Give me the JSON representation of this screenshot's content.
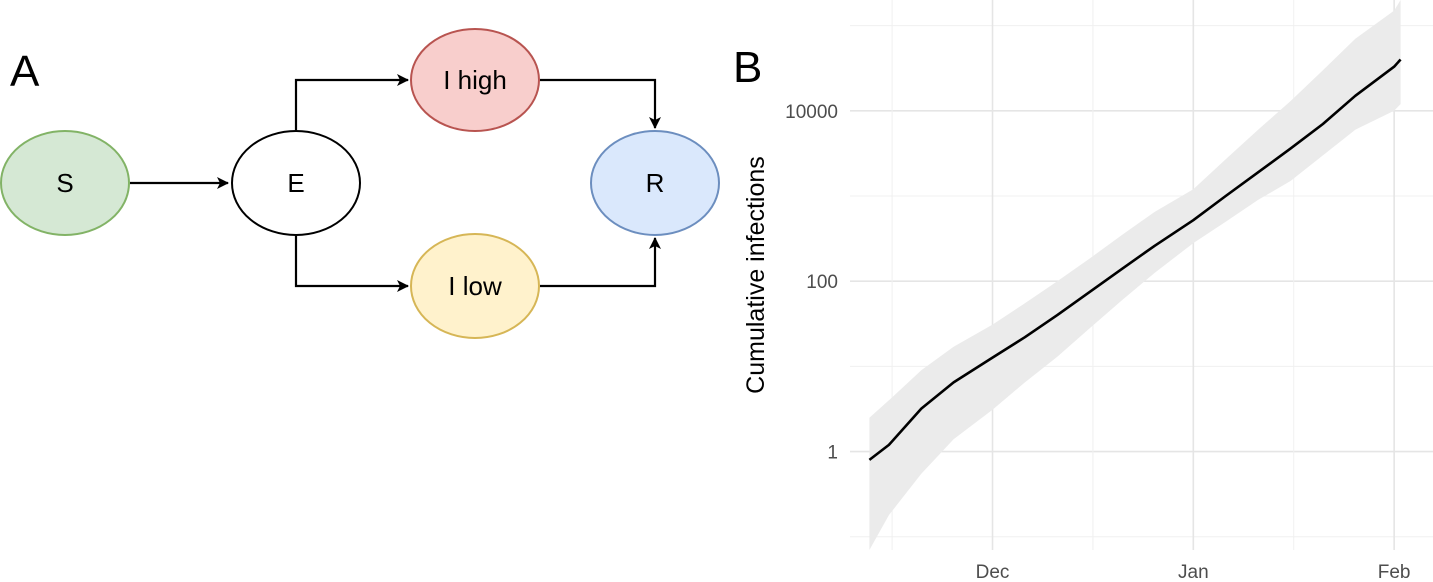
{
  "panels": {
    "a": {
      "letter": "A"
    },
    "b": {
      "letter": "B"
    }
  },
  "diagram": {
    "nodes": {
      "s": {
        "label": "S",
        "fill": "#d5e8d4",
        "stroke": "#82b366"
      },
      "e": {
        "label": "E",
        "fill": "#ffffff",
        "stroke": "#000000"
      },
      "ihigh": {
        "label": "I high",
        "fill": "#f8cecc",
        "stroke": "#b85450"
      },
      "ilow": {
        "label": "I low",
        "fill": "#fff2cc",
        "stroke": "#d6b656"
      },
      "r": {
        "label": "R",
        "fill": "#dae8fc",
        "stroke": "#6c8ebf"
      }
    },
    "edges": [
      {
        "from": "S",
        "to": "E"
      },
      {
        "from": "E",
        "to": "I high"
      },
      {
        "from": "E",
        "to": "I low"
      },
      {
        "from": "I high",
        "to": "R"
      },
      {
        "from": "I low",
        "to": "R"
      }
    ]
  },
  "chart_data": {
    "type": "line",
    "ylabel": "Cumulative infections",
    "xlabel": "",
    "y_scale": "log10",
    "ylim": [
      0.07,
      200000
    ],
    "y_ticks": [
      1,
      100,
      10000
    ],
    "y_tick_labels": [
      "1",
      "100",
      "10000"
    ],
    "x_ticks": [
      "2019-12-01",
      "2020-01-01",
      "2020-02-01"
    ],
    "x_tick_labels": [
      "Dec",
      "Jan",
      "Feb"
    ],
    "xlim": [
      "2019-11-09",
      "2020-02-07"
    ],
    "grid": true,
    "line_color": "#000000",
    "band_color": "#ebebeb",
    "series": [
      {
        "x": [
          "2019-11-12",
          "2019-11-15",
          "2019-11-20",
          "2019-11-25",
          "2019-12-01",
          "2019-12-06",
          "2019-12-11",
          "2019-12-16",
          "2019-12-21",
          "2019-12-26",
          "2020-01-01",
          "2020-01-06",
          "2020-01-11",
          "2020-01-16",
          "2020-01-21",
          "2020-01-26",
          "2020-02-01",
          "2020-02-02"
        ],
        "y": [
          0.8,
          1.2,
          3.2,
          6.5,
          12.7,
          22,
          40,
          75,
          140,
          260,
          520,
          1000,
          1900,
          3600,
          7000,
          15000,
          33000,
          40000
        ],
        "lower": [
          0.07,
          0.18,
          0.55,
          1.4,
          3.1,
          6.5,
          13,
          28,
          60,
          125,
          280,
          500,
          900,
          1500,
          3000,
          6000,
          10000,
          12000
        ],
        "upper": [
          2.5,
          4,
          9,
          17,
          31,
          55,
          100,
          185,
          350,
          650,
          1200,
          2700,
          6000,
          13000,
          30000,
          70000,
          150000,
          200000
        ]
      }
    ]
  }
}
